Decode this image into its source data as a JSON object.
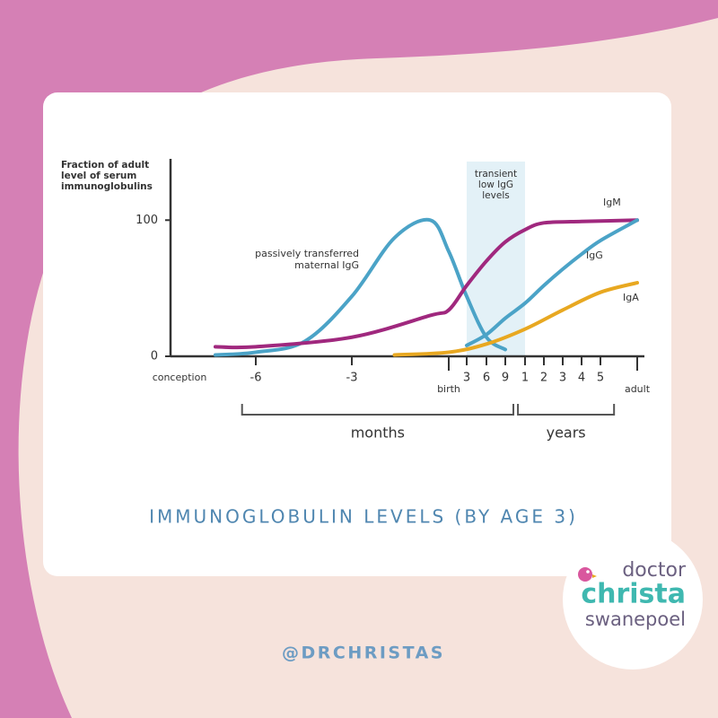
{
  "chart_data": {
    "type": "line",
    "ylabel": "Fraction of adult level of serum immunoglobulins",
    "ylim": [
      0,
      145
    ],
    "yticks": [
      0,
      100
    ],
    "xlim": [
      -0.1,
      12.2
    ],
    "xticks": [
      {
        "value": 0,
        "label": "conception"
      },
      {
        "value": 1,
        "label": "-6"
      },
      {
        "value": 2,
        "label": "-3"
      },
      {
        "value": 3,
        "label": "birth"
      },
      {
        "value": 4,
        "label": "3"
      },
      {
        "value": 5,
        "label": "6"
      },
      {
        "value": 6,
        "label": "9"
      },
      {
        "value": 7,
        "label": "1"
      },
      {
        "value": 8,
        "label": "2"
      },
      {
        "value": 9,
        "label": "3"
      },
      {
        "value": 10,
        "label": "4"
      },
      {
        "value": 11,
        "label": "5"
      },
      {
        "value": 12,
        "label": "adult"
      }
    ],
    "series": [
      {
        "name": "passively transferred maternal IgG",
        "color": "#4ba3c7",
        "x": [
          0.47,
          1,
          1.51,
          2,
          2.44,
          2.81,
          3,
          4,
          5,
          6
        ],
        "values": [
          1,
          3,
          11,
          44,
          87,
          100,
          77,
          44,
          14,
          5
        ]
      },
      {
        "name": "IgM",
        "color": "#a0287e",
        "x": [
          0.47,
          1,
          2,
          2.81,
          3,
          4,
          5,
          6,
          7,
          8,
          10,
          12
        ],
        "values": [
          7,
          7,
          14,
          30,
          34,
          52,
          70,
          84,
          93,
          98,
          99,
          100
        ]
      },
      {
        "name": "IgG",
        "color": "#4ba3c7",
        "x": [
          4,
          5,
          6,
          7,
          8,
          9,
          10,
          11,
          12
        ],
        "values": [
          8,
          16,
          28,
          39,
          52,
          64,
          75,
          85,
          100
        ]
      },
      {
        "name": "IgA",
        "color": "#e8a821",
        "x": [
          2.44,
          3,
          5,
          7,
          9,
          11,
          12
        ],
        "values": [
          1,
          3,
          9,
          20,
          34,
          47,
          54
        ]
      }
    ],
    "band": {
      "x": [
        4,
        7
      ],
      "label": "transient low IgG levels",
      "color": "#e3f1f7"
    },
    "spans": [
      {
        "label": "months",
        "x": [
          0.82,
          6.41
        ]
      },
      {
        "label": "years",
        "x": [
          6.64,
          11.37
        ]
      }
    ],
    "caption": "IMMUNOGLOBULIN LEVELS (BY AGE 3)"
  },
  "footer": {
    "handle": "@DRCHRISTAS"
  },
  "brand": {
    "lines": [
      "doctor",
      "christa",
      "swanepoel"
    ]
  }
}
